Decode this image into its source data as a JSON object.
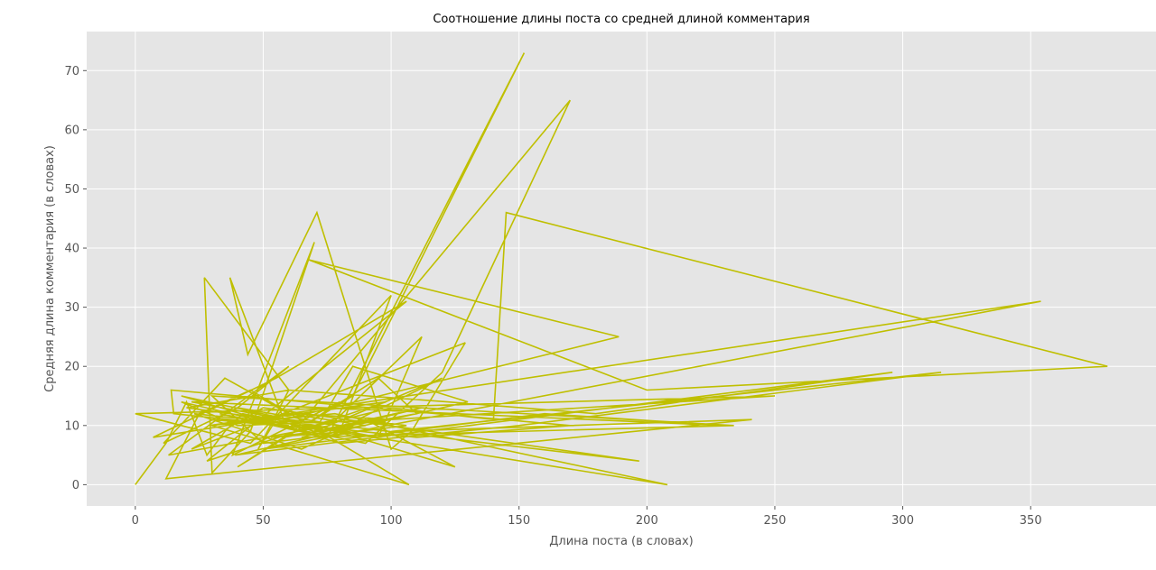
{
  "chart_data": {
    "type": "line",
    "title": "Соотношение длины поста со средней длиной комментария",
    "xlabel": "Длина поста (в словах)",
    "ylabel": "Средняя длина комментария (в словах)",
    "xlim": [
      -19,
      399
    ],
    "ylim": [
      -3.6,
      76.6
    ],
    "xticks": [
      0,
      50,
      100,
      150,
      200,
      250,
      300,
      350
    ],
    "yticks": [
      0,
      10,
      20,
      30,
      40,
      50,
      60,
      70
    ],
    "grid": true,
    "legend": "none",
    "series": [
      {
        "color": "#bfbf00",
        "x": [
          0,
          12,
          20,
          28,
          35,
          42,
          55,
          48,
          60,
          27,
          30,
          45,
          70,
          38,
          80,
          66,
          95,
          110,
          58,
          40,
          85,
          152,
          75,
          33,
          90,
          120,
          170,
          62,
          100,
          140,
          145,
          380,
          200,
          68,
          189,
          58,
          37,
          44,
          71,
          100,
          108,
          129,
          22,
          50,
          197,
          60,
          18,
          80,
          150,
          315,
          100,
          241,
          12,
          25,
          45,
          107,
          30,
          98,
          28,
          106,
          55,
          7,
          50,
          208,
          78,
          29,
          354,
          50,
          160,
          230,
          22,
          95,
          112,
          76,
          13,
          60,
          40,
          70,
          120,
          87,
          106,
          50,
          30,
          234,
          65,
          112,
          70,
          85,
          130,
          39,
          296,
          180,
          122,
          60,
          20,
          71,
          125,
          90,
          65,
          23,
          110,
          170,
          14,
          15,
          60,
          30,
          80,
          100,
          45,
          0,
          250,
          100,
          80,
          40,
          11,
          35,
          60,
          90,
          53,
          83,
          57,
          18,
          40,
          100,
          63
        ],
        "y": [
          0,
          7,
          14,
          5,
          9,
          12,
          11,
          6,
          16,
          35,
          2,
          9,
          41,
          5,
          14,
          10,
          18,
          12,
          8,
          3,
          15,
          73,
          8,
          12,
          7,
          19,
          65,
          9,
          13,
          11,
          46,
          20,
          16,
          38,
          25,
          11,
          35,
          22,
          46,
          6,
          9,
          24,
          6,
          13,
          4,
          11,
          15,
          7,
          10,
          19,
          9,
          11,
          1,
          12,
          16,
          0,
          10,
          14,
          4,
          31,
          18,
          8,
          11,
          0,
          12,
          10,
          31,
          6,
          12,
          10,
          14,
          8,
          25,
          10,
          5,
          20,
          13,
          9,
          18,
          11,
          10,
          7,
          15,
          10,
          8,
          13,
          9,
          20,
          14,
          5,
          19,
          12,
          14,
          16,
          13,
          10,
          3,
          11,
          6,
          12,
          8,
          10,
          16,
          12,
          10,
          11,
          9,
          32,
          7,
          12,
          15,
          11,
          10,
          13,
          7,
          18,
          12,
          10,
          8,
          9,
          10,
          14,
          10,
          11,
          12
        ]
      }
    ]
  }
}
